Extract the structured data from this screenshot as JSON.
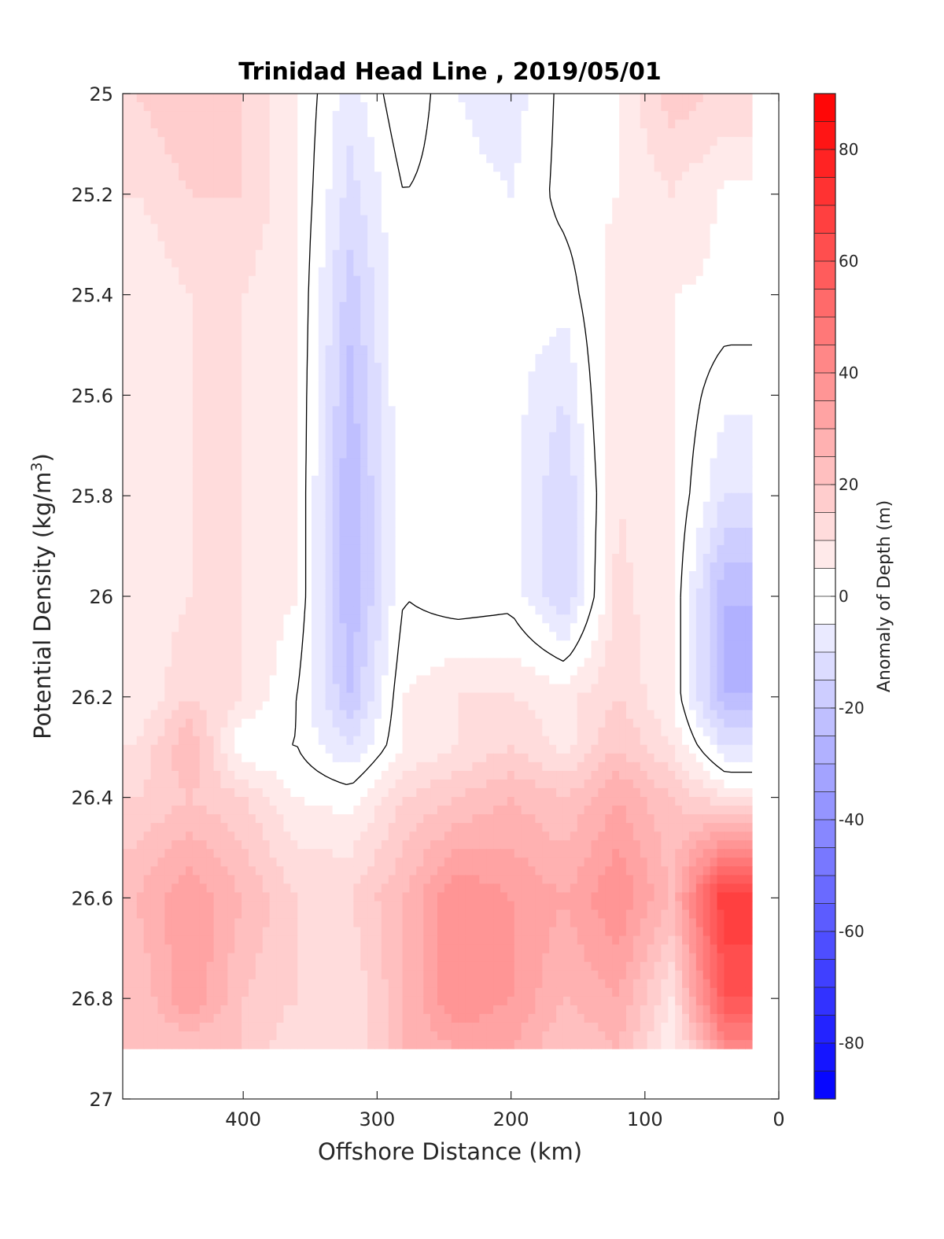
{
  "chart_data": {
    "type": "heatmap",
    "title": "Trinidad Head Line , 2019/05/01",
    "xlabel": "Offshore Distance (km)",
    "ylabel_main": "Potential Density (kg/m",
    "ylabel_sup": "3",
    "ylabel_end": ")",
    "xlim": [
      490,
      0
    ],
    "ylim": [
      25,
      27
    ],
    "y_reversed": true,
    "x_reversed": true,
    "x_ticks": [
      400,
      300,
      200,
      100,
      0
    ],
    "x_tick_labels": [
      "400",
      "300",
      "200",
      "100",
      "0"
    ],
    "y_ticks": [
      25,
      25.2,
      25.4,
      25.6,
      25.8,
      26,
      26.2,
      26.4,
      26.6,
      26.8,
      27
    ],
    "y_tick_labels": [
      "25",
      "25.2",
      "25.4",
      "25.6",
      "25.8",
      "26",
      "26.2",
      "26.4",
      "26.6",
      "26.8",
      "27"
    ],
    "grid": false,
    "colorbar": {
      "label": "Anomaly of Depth (m)",
      "range": [
        -90,
        90
      ],
      "step": 5,
      "ticks": [
        80,
        60,
        40,
        20,
        0,
        -20,
        -40,
        -60,
        -80
      ],
      "tick_labels": [
        "80",
        "60",
        "40",
        "20",
        "0",
        "-20",
        "-40",
        "-60",
        "-80"
      ],
      "max_color": "#ff0000",
      "min_color": "#0000ff",
      "mid_color": "#ffffff"
    },
    "contour_level": 0,
    "x": [
      480,
      440,
      400,
      360,
      320,
      280,
      240,
      200,
      160,
      120,
      80,
      40
    ],
    "y": [
      25.0,
      25.2,
      25.4,
      25.6,
      25.8,
      26.0,
      26.2,
      26.3,
      26.4,
      26.6,
      26.8,
      26.9
    ],
    "z": [
      [
        15,
        20,
        15,
        5,
        -8,
        5,
        -5,
        -8,
        2,
        5,
        18,
        14
      ],
      [
        10,
        15,
        15,
        5,
        -12,
        0,
        -3,
        -5,
        2,
        5,
        10,
        4
      ],
      [
        5,
        10,
        10,
        5,
        -18,
        0,
        -3,
        -2,
        -3,
        8,
        5,
        4
      ],
      [
        5,
        10,
        10,
        5,
        -22,
        0,
        -5,
        -3,
        -10,
        10,
        5,
        -4
      ],
      [
        5,
        10,
        10,
        5,
        -25,
        0,
        -5,
        -3,
        -15,
        10,
        5,
        -10
      ],
      [
        5,
        10,
        10,
        5,
        -25,
        0,
        -3,
        -2,
        -15,
        12,
        5,
        -25
      ],
      [
        5,
        15,
        10,
        0,
        -20,
        5,
        10,
        10,
        8,
        15,
        5,
        -25
      ],
      [
        10,
        25,
        0,
        0,
        -10,
        5,
        10,
        15,
        8,
        20,
        10,
        -10
      ],
      [
        15,
        20,
        15,
        5,
        3,
        15,
        20,
        25,
        20,
        30,
        20,
        10
      ],
      [
        25,
        35,
        25,
        15,
        15,
        25,
        40,
        35,
        30,
        40,
        25,
        70
      ],
      [
        20,
        35,
        20,
        15,
        10,
        25,
        40,
        35,
        25,
        30,
        10,
        60
      ],
      [
        20,
        20,
        20,
        10,
        10,
        25,
        30,
        30,
        20,
        25,
        5,
        40
      ]
    ]
  }
}
